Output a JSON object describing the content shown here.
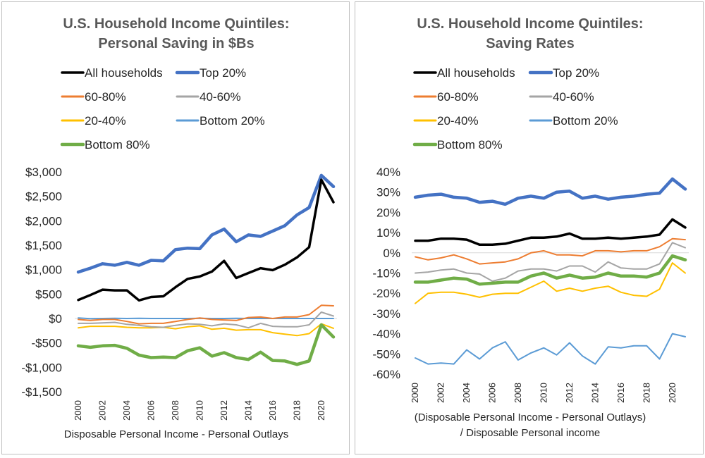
{
  "chart_data": [
    {
      "type": "line",
      "title": [
        "U.S. Household Income Quintiles:",
        "Personal Saving in $Bs"
      ],
      "xlabel": [
        "Disposable Personal Income - Personal Outlays"
      ],
      "ylabel": "",
      "ylim": [
        -1500,
        3000
      ],
      "yticks": [
        3000,
        2500,
        2000,
        1500,
        1000,
        500,
        0,
        -500,
        -1000,
        -1500
      ],
      "ytick_labels": [
        "$3,000",
        "$2,500",
        "$2,000",
        "$1,500",
        "$1,000",
        "$500",
        "$0",
        "-$500",
        "-$1,000",
        "-$1,500"
      ],
      "x": [
        2000,
        2001,
        2002,
        2003,
        2004,
        2005,
        2006,
        2007,
        2008,
        2009,
        2010,
        2011,
        2012,
        2013,
        2014,
        2015,
        2016,
        2017,
        2018,
        2019,
        2020,
        2021
      ],
      "xticks": [
        "2000",
        "2002",
        "2004",
        "2006",
        "2008",
        "2010",
        "2012",
        "2014",
        "2016",
        "2018",
        "2020"
      ],
      "grid": false,
      "legend_position": "top",
      "series": [
        {
          "name": "All households",
          "color": "#000000",
          "width": 3.5,
          "values": [
            380,
            480,
            590,
            575,
            575,
            370,
            440,
            455,
            640,
            810,
            860,
            960,
            1180,
            830,
            930,
            1030,
            990,
            1100,
            1250,
            1460,
            2840,
            2380
          ]
        },
        {
          "name": "Top 20%",
          "color": "#4472C4",
          "width": 4.5,
          "values": [
            950,
            1030,
            1120,
            1090,
            1150,
            1090,
            1190,
            1180,
            1410,
            1440,
            1430,
            1710,
            1830,
            1570,
            1710,
            1680,
            1790,
            1900,
            2120,
            2270,
            2930,
            2700
          ]
        },
        {
          "name": "60-80%",
          "color": "#ED7D31",
          "width": 2,
          "values": [
            -20,
            -40,
            -20,
            -20,
            -60,
            -110,
            -100,
            -100,
            -60,
            -20,
            10,
            -20,
            -30,
            -40,
            20,
            30,
            0,
            30,
            30,
            80,
            270,
            260
          ]
        },
        {
          "name": "40-60%",
          "color": "#A5A5A5",
          "width": 2,
          "values": [
            -100,
            -100,
            -90,
            -80,
            -120,
            -140,
            -170,
            -180,
            -140,
            -110,
            -120,
            -150,
            -110,
            -130,
            -190,
            -100,
            -160,
            -170,
            -170,
            -130,
            130,
            50
          ]
        },
        {
          "name": "20-40%",
          "color": "#FFC000",
          "width": 2,
          "values": [
            -190,
            -160,
            -160,
            -160,
            -180,
            -190,
            -190,
            -180,
            -210,
            -170,
            -150,
            -220,
            -200,
            -240,
            -230,
            -230,
            -290,
            -320,
            -350,
            -310,
            -110,
            -200
          ]
        },
        {
          "name": "Bottom 20%",
          "color": "#5B9BD5",
          "width": 2,
          "values": [
            10,
            -5,
            0,
            5,
            0,
            5,
            0,
            0,
            0,
            0,
            5,
            0,
            0,
            5,
            0,
            0,
            0,
            0,
            0,
            0,
            0,
            0
          ]
        },
        {
          "name": "Bottom 80%",
          "color": "#70AD47",
          "width": 4.5,
          "values": [
            -560,
            -590,
            -560,
            -550,
            -610,
            -750,
            -800,
            -790,
            -800,
            -660,
            -600,
            -770,
            -700,
            -800,
            -840,
            -690,
            -860,
            -870,
            -940,
            -870,
            -130,
            -380
          ]
        }
      ]
    },
    {
      "type": "line",
      "title": [
        "U.S. Household Income Quintiles:",
        "Saving Rates"
      ],
      "xlabel": [
        "(Disposable Personal Income - Personal Outlays)",
        "/ Disposable Personal income"
      ],
      "ylabel": "",
      "ylim": [
        -60,
        40
      ],
      "yticks": [
        40,
        30,
        20,
        10,
        0,
        -10,
        -20,
        -30,
        -40,
        -50,
        -60
      ],
      "ytick_labels": [
        "40%",
        "30%",
        "20%",
        "10%",
        "0%",
        "-10%",
        "-20%",
        "-30%",
        "-40%",
        "-50%",
        "-60%"
      ],
      "x": [
        2000,
        2001,
        2002,
        2003,
        2004,
        2005,
        2006,
        2007,
        2008,
        2009,
        2010,
        2011,
        2012,
        2013,
        2014,
        2015,
        2016,
        2017,
        2018,
        2019,
        2020,
        2021
      ],
      "xticks": [
        "2000",
        "2002",
        "2004",
        "2006",
        "2008",
        "2010",
        "2012",
        "2014",
        "2016",
        "2018",
        "2020"
      ],
      "grid": false,
      "legend_position": "top",
      "series": [
        {
          "name": "All households",
          "color": "#000000",
          "width": 3.5,
          "values": [
            6,
            6,
            7,
            7,
            6.5,
            4,
            4,
            4.5,
            6,
            7.5,
            7.5,
            8,
            9.5,
            7,
            7,
            7.5,
            7,
            7.5,
            8,
            9,
            16.5,
            12.5
          ]
        },
        {
          "name": "Top 20%",
          "color": "#4472C4",
          "width": 4.5,
          "values": [
            27.5,
            28.5,
            29,
            27.5,
            27,
            25,
            25.5,
            24,
            27,
            28,
            27,
            30,
            30.5,
            27,
            28,
            26.5,
            27.5,
            28,
            29,
            29.5,
            36.5,
            31.5
          ]
        },
        {
          "name": "60-80%",
          "color": "#ED7D31",
          "width": 2,
          "values": [
            -2,
            -3.5,
            -2.5,
            -1,
            -3,
            -5.5,
            -5,
            -4.5,
            -3,
            0,
            1,
            -1,
            -1,
            -1.5,
            1,
            1,
            0.5,
            1,
            1,
            3,
            7,
            6.5
          ]
        },
        {
          "name": "40-60%",
          "color": "#A5A5A5",
          "width": 2,
          "values": [
            -10,
            -9.5,
            -8.5,
            -8,
            -10,
            -10.5,
            -14,
            -12.5,
            -9,
            -8,
            -8,
            -9,
            -6.5,
            -6.5,
            -9.5,
            -4.5,
            -7.5,
            -8,
            -8,
            -5.5,
            5,
            2.5
          ]
        },
        {
          "name": "20-40%",
          "color": "#FFC000",
          "width": 2,
          "values": [
            -25,
            -20,
            -19.5,
            -19.5,
            -20.5,
            -22,
            -20.5,
            -20,
            -20,
            -17,
            -14,
            -19,
            -17.5,
            -19,
            -17.5,
            -16.5,
            -19.5,
            -21,
            -21.5,
            -18,
            -5,
            -10
          ]
        },
        {
          "name": "Bottom 20%",
          "color": "#5B9BD5",
          "width": 2,
          "values": [
            -52,
            -55,
            -54.5,
            -55,
            -48,
            -52.5,
            -47,
            -44,
            -53,
            -49.5,
            -47,
            -50.5,
            -44.5,
            -51,
            -55,
            -46.5,
            -47,
            -46,
            -46,
            -52.5,
            -40,
            -41.5
          ]
        },
        {
          "name": "Bottom 80%",
          "color": "#70AD47",
          "width": 4.5,
          "values": [
            -14.5,
            -14.5,
            -13.5,
            -12.5,
            -13,
            -15.5,
            -15,
            -14.5,
            -14.5,
            -11.5,
            -10,
            -12.5,
            -11,
            -12.5,
            -12,
            -10,
            -11.5,
            -11.5,
            -12,
            -10,
            -1.5,
            -3.5
          ]
        }
      ]
    }
  ]
}
